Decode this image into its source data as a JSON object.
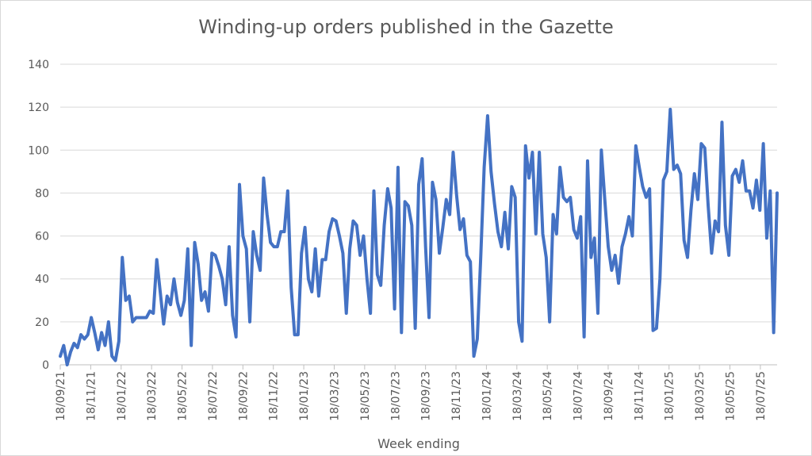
{
  "chart_data": {
    "type": "line",
    "title": "Winding-up orders published in the Gazette",
    "xlabel": "Week ending",
    "ylabel": "",
    "ylim": [
      0,
      140
    ],
    "yticks": [
      0,
      20,
      40,
      60,
      80,
      100,
      120,
      140
    ],
    "grid": true,
    "legend": "none",
    "x_start": "18/09/21",
    "x_end": "29/08/25",
    "xtick_labels": [
      "18/09/21",
      "18/11/21",
      "18/01/22",
      "18/03/22",
      "18/05/22",
      "18/07/22",
      "18/09/22",
      "18/11/22",
      "18/01/23",
      "18/03/23",
      "18/05/23",
      "18/07/23",
      "18/09/23",
      "18/11/23",
      "18/01/24",
      "18/03/24",
      "18/05/24",
      "18/07/24",
      "18/09/24",
      "18/11/24",
      "18/01/25",
      "18/03/25",
      "18/05/25",
      "18/07/25"
    ],
    "series": [
      {
        "name": "",
        "color": "#4472c4",
        "values": [
          4,
          9,
          0,
          6,
          10,
          8,
          14,
          12,
          14,
          22,
          15,
          7,
          15,
          9,
          20,
          4,
          2,
          11,
          50,
          30,
          32,
          20,
          22,
          22,
          22,
          22,
          25,
          24,
          49,
          34,
          19,
          32,
          28,
          40,
          29,
          23,
          30,
          54,
          9,
          57,
          47,
          30,
          34,
          25,
          52,
          51,
          46,
          40,
          28,
          55,
          23,
          13,
          84,
          60,
          54,
          20,
          62,
          51,
          44,
          87,
          70,
          57,
          55,
          55,
          62,
          62,
          81,
          36,
          14,
          14,
          52,
          64,
          40,
          34,
          54,
          32,
          49,
          49,
          62,
          68,
          67,
          60,
          52,
          24,
          54,
          67,
          65,
          51,
          60,
          40,
          24,
          81,
          42,
          37,
          65,
          82,
          73,
          26,
          92,
          15,
          76,
          74,
          65,
          17,
          84,
          96,
          55,
          22,
          85,
          77,
          52,
          64,
          77,
          70,
          99,
          79,
          63,
          68,
          51,
          48,
          4,
          12,
          50,
          92,
          116,
          90,
          75,
          62,
          55,
          71,
          54,
          83,
          78,
          20,
          11,
          102,
          87,
          99,
          61,
          99,
          61,
          50,
          20,
          70,
          61,
          92,
          78,
          76,
          78,
          63,
          59,
          69,
          13,
          95,
          50,
          59,
          24,
          100,
          77,
          55,
          44,
          51,
          38,
          55,
          61,
          69,
          60,
          102,
          92,
          83,
          78,
          82,
          16,
          17,
          40,
          86,
          90,
          119,
          91,
          93,
          89,
          58,
          50,
          72,
          89,
          77,
          103,
          101,
          74,
          52,
          67,
          62,
          113,
          65,
          51,
          88,
          91,
          85,
          95,
          81,
          81,
          73,
          86,
          72,
          103,
          59,
          81,
          15,
          80
        ]
      }
    ]
  }
}
